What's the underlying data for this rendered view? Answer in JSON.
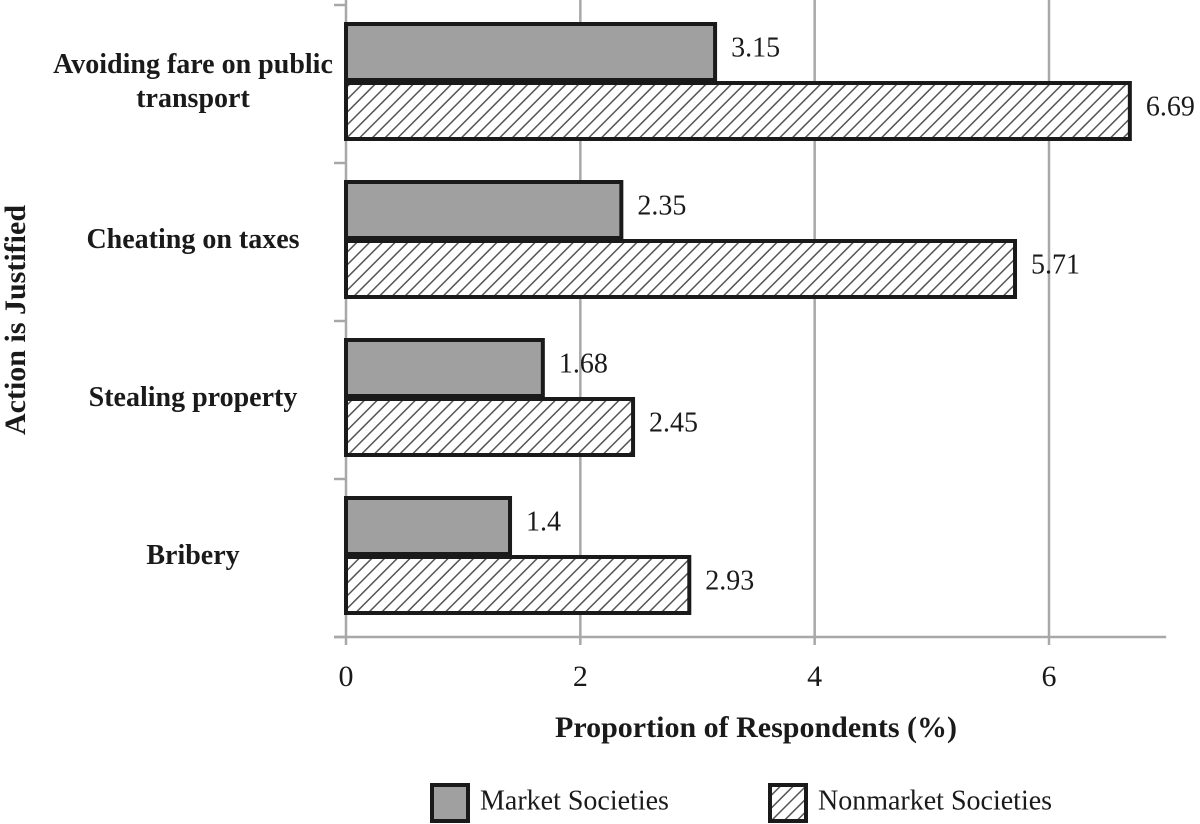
{
  "chart_data": {
    "type": "hbar",
    "categories": [
      "Avoiding fare on public transport",
      "Cheating on taxes",
      "Stealing property",
      "Bribery"
    ],
    "series": [
      {
        "name": "Market Societies",
        "color": "#a0a0a0",
        "values": [
          3.15,
          2.35,
          1.68,
          1.4
        ]
      },
      {
        "name": "Nonmarket Societies",
        "color": "#555555",
        "hatch": true,
        "values": [
          6.69,
          5.71,
          2.45,
          2.93
        ]
      }
    ],
    "x_label": "Proportion of Respondents (%)",
    "y_label": "Action is Justified",
    "xlim": [
      0,
      7
    ],
    "xticks": [
      0,
      2,
      4,
      6
    ],
    "grid": true,
    "legend": "bottom"
  }
}
